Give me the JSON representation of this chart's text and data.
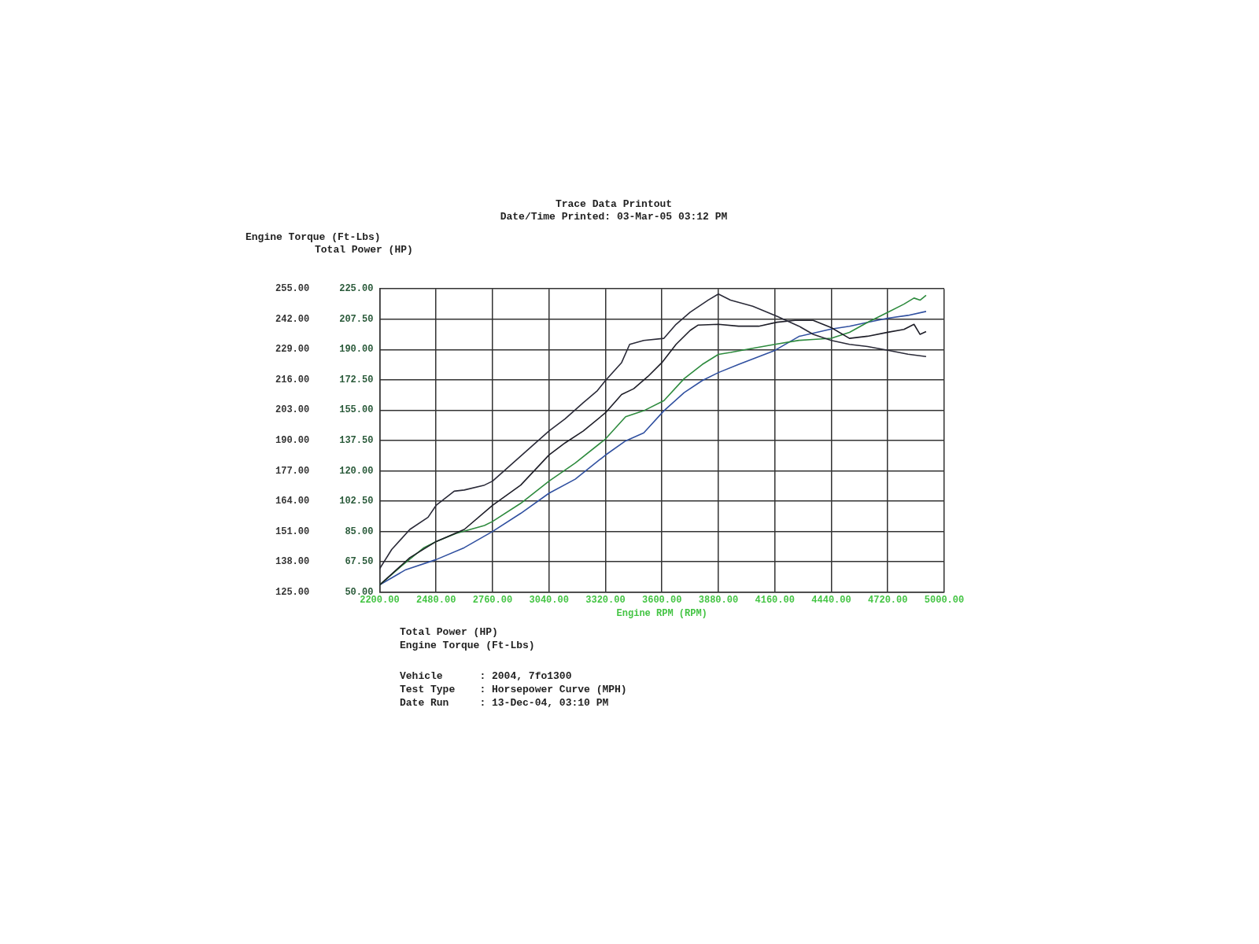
{
  "chart_data": {
    "type": "line",
    "title": "Trace Data Printout",
    "subtitle": "Date/Time Printed: 03-Mar-05 03:12 PM",
    "xlabel": "Engine RPM (RPM)",
    "ylabel": "Engine Torque (Ft-Lbs)",
    "y2label": "Total Power (HP)",
    "xlim": [
      2200,
      5000
    ],
    "xticks": [
      {
        "value": 2200,
        "label": "2200.00"
      },
      {
        "value": 2480,
        "label": "2480.00"
      },
      {
        "value": 2760,
        "label": "2760.00"
      },
      {
        "value": 3040,
        "label": "3040.00"
      },
      {
        "value": 3320,
        "label": "3320.00"
      },
      {
        "value": 3600,
        "label": "3600.00"
      },
      {
        "value": 3880,
        "label": "3880.00"
      },
      {
        "value": 4160,
        "label": "4160.00"
      },
      {
        "value": 4440,
        "label": "4440.00"
      },
      {
        "value": 4720,
        "label": "4720.00"
      },
      {
        "value": 5000,
        "label": "5000.00"
      }
    ],
    "ylim": [
      125,
      255
    ],
    "yticks": [
      {
        "value": 125,
        "label": "125.00"
      },
      {
        "value": 138,
        "label": "138.00"
      },
      {
        "value": 151,
        "label": "151.00"
      },
      {
        "value": 164,
        "label": "164.00"
      },
      {
        "value": 177,
        "label": "177.00"
      },
      {
        "value": 190,
        "label": "190.00"
      },
      {
        "value": 203,
        "label": "203.00"
      },
      {
        "value": 216,
        "label": "216.00"
      },
      {
        "value": 229,
        "label": "229.00"
      },
      {
        "value": 242,
        "label": "242.00"
      },
      {
        "value": 255,
        "label": "255.00"
      }
    ],
    "y2lim": [
      50,
      225
    ],
    "y2ticks": [
      {
        "value": 50,
        "label": "50.00"
      },
      {
        "value": 67.5,
        "label": "67.50"
      },
      {
        "value": 85,
        "label": "85.00"
      },
      {
        "value": 102.5,
        "label": "102.50"
      },
      {
        "value": 120,
        "label": "120.00"
      },
      {
        "value": 137.5,
        "label": "137.50"
      },
      {
        "value": 155,
        "label": "155.00"
      },
      {
        "value": 172.5,
        "label": "172.50"
      },
      {
        "value": 190,
        "label": "190.00"
      },
      {
        "value": 207.5,
        "label": "207.50"
      },
      {
        "value": 225,
        "label": "225.00"
      }
    ],
    "grid": true,
    "legend": false,
    "marker": "none",
    "line_style": "solid",
    "series": [
      {
        "color": "#2a2a38",
        "x": [
          2200,
          2260,
          2350,
          2440,
          2480,
          2570,
          2620,
          2720,
          2760,
          2850,
          2940,
          3040,
          3120,
          3210,
          3280,
          3320,
          3400,
          3440,
          3510,
          3610,
          3670,
          3740,
          3830,
          3880,
          3940,
          4050,
          4170,
          4280,
          4350,
          4440,
          4530,
          4620,
          4720,
          4820,
          4910
        ],
        "values": [
          135.0,
          143.3,
          151.9,
          157.1,
          162.2,
          168.3,
          168.8,
          170.9,
          172.6,
          179.5,
          186.4,
          194.1,
          199.3,
          206.2,
          211.4,
          215.7,
          223.4,
          231.2,
          232.9,
          233.8,
          239.8,
          245.0,
          250.2,
          252.8,
          250.2,
          247.6,
          243.3,
          239.0,
          235.5,
          232.9,
          231.2,
          230.3,
          228.7,
          227.0,
          226.0
        ]
      },
      {
        "color": "#1e1e28",
        "x": [
          2200,
          2350,
          2480,
          2620,
          2760,
          2900,
          3040,
          3120,
          3210,
          3320,
          3400,
          3460,
          3530,
          3600,
          3670,
          3740,
          3780,
          3880,
          3980,
          4080,
          4170,
          4260,
          4350,
          4440,
          4530,
          4620,
          4720,
          4800,
          4850,
          4880,
          4910
        ],
        "values": [
          128.1,
          139.8,
          146.7,
          151.9,
          162.2,
          170.9,
          183.8,
          189.0,
          194.1,
          201.9,
          209.7,
          212.2,
          217.4,
          223.4,
          231.2,
          237.2,
          239.5,
          239.8,
          239.0,
          239.0,
          240.7,
          241.5,
          241.5,
          238.4,
          233.8,
          234.7,
          236.4,
          237.6,
          239.8,
          235.5,
          236.7
        ]
      },
      {
        "color": "#2e8b3e",
        "axis": "y2",
        "x": [
          2200,
          2310,
          2420,
          2480,
          2580,
          2720,
          2760,
          2900,
          3040,
          3170,
          3320,
          3420,
          3510,
          3610,
          3710,
          3800,
          3880,
          3940,
          4050,
          4160,
          4280,
          4350,
          4440,
          4530,
          4620,
          4720,
          4800,
          4850,
          4880,
          4910
        ],
        "values": [
          54.2,
          65.3,
          75.7,
          79.2,
          83.9,
          88.5,
          90.8,
          101.3,
          114.1,
          124.5,
          138.4,
          151.2,
          154.7,
          160.5,
          173.2,
          181.4,
          187.2,
          188.3,
          190.7,
          193.0,
          195.3,
          195.8,
          196.5,
          199.9,
          205.7,
          211.5,
          216.2,
          219.7,
          218.5,
          221.3
        ]
      },
      {
        "color": "#3050a0",
        "axis": "y2",
        "x": [
          2200,
          2330,
          2480,
          2620,
          2760,
          2900,
          3040,
          3170,
          3320,
          3420,
          3510,
          3610,
          3710,
          3800,
          3880,
          3980,
          4160,
          4280,
          4440,
          4530,
          4620,
          4720,
          4820,
          4910
        ],
        "values": [
          54.2,
          63.0,
          68.8,
          75.7,
          85.0,
          95.5,
          107.1,
          115.2,
          129.1,
          137.3,
          141.9,
          154.7,
          165.1,
          172.1,
          176.7,
          181.4,
          189.5,
          197.6,
          201.8,
          203.4,
          205.7,
          208.1,
          209.7,
          212.0
        ]
      }
    ],
    "annotations": [
      "Total Power (HP)",
      "Engine Torque (Ft-Lbs)",
      "Vehicle      : 2004, 7fo1300",
      "Test Type    : Horsepower Curve (MPH)",
      "Date Run     : 13-Dec-04, 03:10 PM"
    ]
  }
}
